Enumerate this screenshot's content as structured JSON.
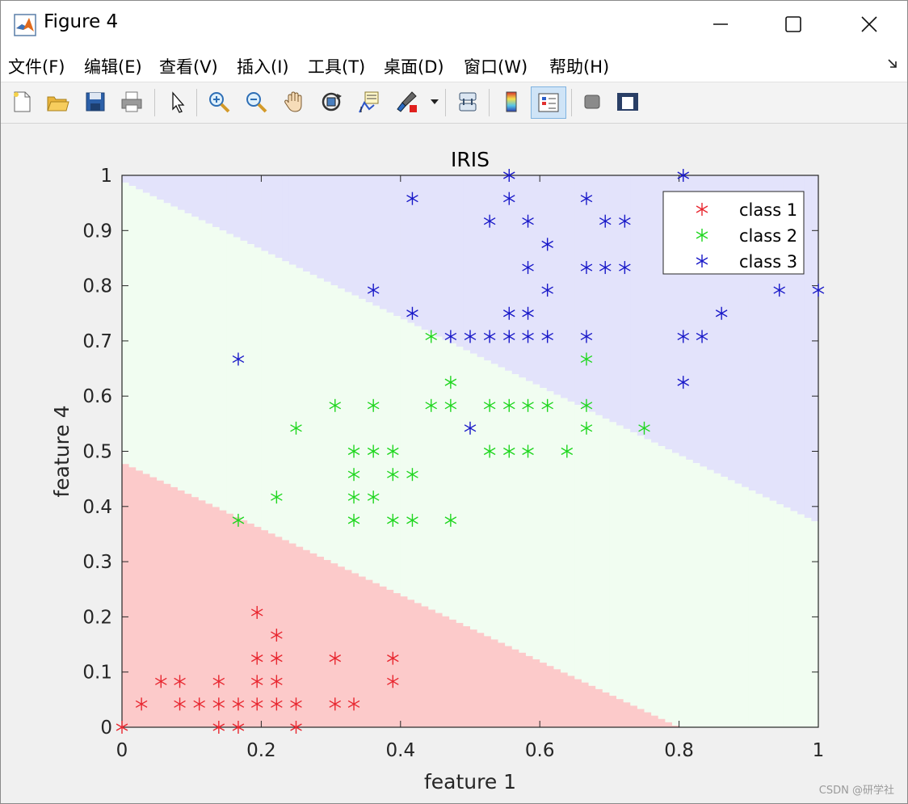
{
  "window": {
    "title": "Figure 4"
  },
  "menu": [
    "文件(F)",
    "编辑(E)",
    "查看(V)",
    "插入(I)",
    "工具(T)",
    "桌面(D)",
    "窗口(W)",
    "帮助(H)"
  ],
  "toolbar_icons": [
    "new-file-icon",
    "open-folder-icon",
    "save-icon",
    "print-icon",
    "pointer-icon",
    "zoom-in-icon",
    "zoom-out-icon",
    "pan-hand-icon",
    "rotate-3d-icon",
    "data-cursor-icon",
    "brush-icon",
    "brush-dropdown-icon",
    "link-plot-icon",
    "colorbar-icon",
    "legend-icon",
    "hide-plot-tools-icon",
    "show-plot-tools-icon"
  ],
  "watermark": "CSDN @研学社",
  "colors": {
    "class1": "#e8262f",
    "class2": "#1fd61f",
    "class3": "#1818c8",
    "region1": "#fccaca",
    "region2": "#f1fdf1",
    "region3": "#e3e3fb"
  },
  "chart_data": {
    "type": "scatter",
    "title": "IRIS",
    "xlabel": "feature 1",
    "ylabel": "feature 4",
    "xlim": [
      0,
      1
    ],
    "ylim": [
      0,
      1
    ],
    "xticks": [
      0,
      0.2,
      0.4,
      0.6,
      0.8,
      1
    ],
    "xticklabels": [
      "0",
      "0.2",
      "0.4",
      "0.6",
      "0.8",
      "1"
    ],
    "yticks": [
      0,
      0.1,
      0.2,
      0.3,
      0.4,
      0.5,
      0.6,
      0.7,
      0.8,
      0.9,
      1
    ],
    "yticklabels": [
      "0",
      "0.1",
      "0.2",
      "0.3",
      "0.4",
      "0.5",
      "0.6",
      "0.7",
      "0.8",
      "0.9",
      "1"
    ],
    "legend_position": "top-right",
    "marker": "asterisk",
    "decision_regions": {
      "boundary_1_2": {
        "y_at_x0": 0.48,
        "y_at_x1": -0.12
      },
      "boundary_2_3": {
        "y_at_x0": 0.99,
        "y_at_x1": 0.37
      }
    },
    "series": [
      {
        "name": "class 1",
        "points": [
          [
            0,
            0
          ],
          [
            0.028,
            0.042
          ],
          [
            0.056,
            0.083
          ],
          [
            0.083,
            0.083
          ],
          [
            0.083,
            0.042
          ],
          [
            0.111,
            0.042
          ],
          [
            0.139,
            0.083
          ],
          [
            0.139,
            0.042
          ],
          [
            0.139,
            0
          ],
          [
            0.167,
            0.042
          ],
          [
            0.167,
            0
          ],
          [
            0.194,
            0.208
          ],
          [
            0.194,
            0.125
          ],
          [
            0.194,
            0.083
          ],
          [
            0.194,
            0.042
          ],
          [
            0.222,
            0.167
          ],
          [
            0.222,
            0.125
          ],
          [
            0.222,
            0.083
          ],
          [
            0.222,
            0.042
          ],
          [
            0.25,
            0.042
          ],
          [
            0.25,
            0
          ],
          [
            0.306,
            0.125
          ],
          [
            0.306,
            0.042
          ],
          [
            0.333,
            0.042
          ],
          [
            0.389,
            0.125
          ],
          [
            0.389,
            0.083
          ]
        ]
      },
      {
        "name": "class 2",
        "points": [
          [
            0.167,
            0.375
          ],
          [
            0.222,
            0.417
          ],
          [
            0.25,
            0.542
          ],
          [
            0.306,
            0.583
          ],
          [
            0.333,
            0.5
          ],
          [
            0.333,
            0.458
          ],
          [
            0.333,
            0.417
          ],
          [
            0.333,
            0.375
          ],
          [
            0.361,
            0.583
          ],
          [
            0.361,
            0.5
          ],
          [
            0.361,
            0.417
          ],
          [
            0.389,
            0.5
          ],
          [
            0.389,
            0.458
          ],
          [
            0.389,
            0.375
          ],
          [
            0.417,
            0.458
          ],
          [
            0.417,
            0.375
          ],
          [
            0.444,
            0.708
          ],
          [
            0.444,
            0.583
          ],
          [
            0.472,
            0.625
          ],
          [
            0.472,
            0.583
          ],
          [
            0.472,
            0.375
          ],
          [
            0.528,
            0.583
          ],
          [
            0.528,
            0.5
          ],
          [
            0.556,
            0.583
          ],
          [
            0.556,
            0.5
          ],
          [
            0.583,
            0.583
          ],
          [
            0.583,
            0.5
          ],
          [
            0.611,
            0.583
          ],
          [
            0.639,
            0.5
          ],
          [
            0.667,
            0.667
          ],
          [
            0.667,
            0.583
          ],
          [
            0.667,
            0.542
          ],
          [
            0.75,
            0.542
          ]
        ]
      },
      {
        "name": "class 3",
        "points": [
          [
            0.167,
            0.667
          ],
          [
            0.361,
            0.792
          ],
          [
            0.417,
            0.958
          ],
          [
            0.417,
            0.75
          ],
          [
            0.472,
            0.708
          ],
          [
            0.5,
            0.708
          ],
          [
            0.5,
            0.542
          ],
          [
            0.528,
            0.917
          ],
          [
            0.528,
            0.708
          ],
          [
            0.556,
            1
          ],
          [
            0.556,
            0.958
          ],
          [
            0.556,
            0.75
          ],
          [
            0.556,
            0.708
          ],
          [
            0.583,
            0.917
          ],
          [
            0.583,
            0.833
          ],
          [
            0.583,
            0.75
          ],
          [
            0.583,
            0.708
          ],
          [
            0.611,
            0.875
          ],
          [
            0.611,
            0.792
          ],
          [
            0.611,
            0.708
          ],
          [
            0.667,
            0.958
          ],
          [
            0.667,
            0.833
          ],
          [
            0.667,
            0.708
          ],
          [
            0.694,
            0.917
          ],
          [
            0.694,
            0.833
          ],
          [
            0.722,
            0.917
          ],
          [
            0.722,
            0.833
          ],
          [
            0.806,
            1
          ],
          [
            0.806,
            0.708
          ],
          [
            0.806,
            0.625
          ],
          [
            0.833,
            0.708
          ],
          [
            0.861,
            0.75
          ],
          [
            0.944,
            0.792
          ],
          [
            1,
            0.792
          ]
        ]
      }
    ]
  }
}
